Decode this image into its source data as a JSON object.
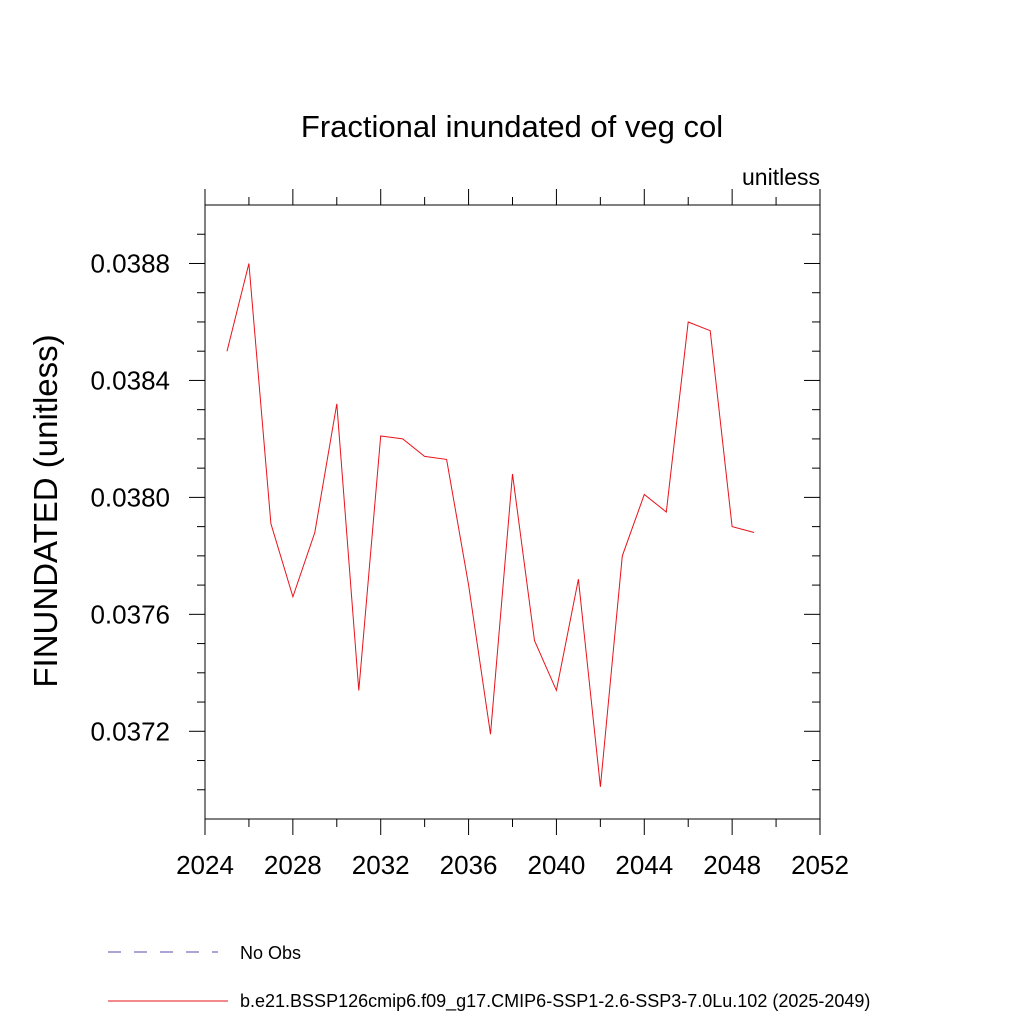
{
  "chart_data": {
    "type": "line",
    "title": "Fractional inundated of veg col",
    "units_label": "unitless",
    "ylabel": "FINUNDATED  (unitless)",
    "xlabel": "",
    "xlim": [
      2024,
      2052
    ],
    "ylim": [
      0.0369,
      0.039
    ],
    "x_ticks": [
      2024,
      2028,
      2032,
      2036,
      2040,
      2044,
      2048,
      2052
    ],
    "x_tick_labels": [
      "2024",
      "2028",
      "2032",
      "2036",
      "2040",
      "2044",
      "2048",
      "2052"
    ],
    "y_ticks": [
      0.0372,
      0.0376,
      0.038,
      0.0384,
      0.0388
    ],
    "y_tick_labels": [
      "0.0372",
      "0.0376",
      "0.0380",
      "0.0384",
      "0.0388"
    ],
    "x_minor_step": 2,
    "y_minor_step": 0.0001,
    "grid": false,
    "series": [
      {
        "name": "b.e21.BSSP126cmip6.f09_g17.CMIP6-SSP1-2.6-SSP3-7.0Lu.102 (2025-2049)",
        "color": "#e8131a",
        "x": [
          2025,
          2026,
          2027,
          2028,
          2029,
          2030,
          2031,
          2032,
          2033,
          2034,
          2035,
          2036,
          2037,
          2038,
          2039,
          2040,
          2041,
          2042,
          2043,
          2044,
          2045,
          2046,
          2047,
          2048,
          2049
        ],
        "values": [
          0.0385,
          0.0388,
          0.03791,
          0.03766,
          0.03788,
          0.03832,
          0.03734,
          0.03821,
          0.0382,
          0.03814,
          0.03813,
          0.0377,
          0.03719,
          0.03808,
          0.03751,
          0.03734,
          0.03772,
          0.03701,
          0.0378,
          0.03801,
          0.03795,
          0.0386,
          0.03857,
          0.0379,
          0.03788
        ]
      }
    ],
    "legend": [
      {
        "label": "No Obs",
        "color": "#5a4aa6",
        "style": "dashed"
      },
      {
        "label": "b.e21.BSSP126cmip6.f09_g17.CMIP6-SSP1-2.6-SSP3-7.0Lu.102 (2025-2049)",
        "color": "#e8131a",
        "style": "solid"
      }
    ],
    "legend_position": "bottom"
  }
}
